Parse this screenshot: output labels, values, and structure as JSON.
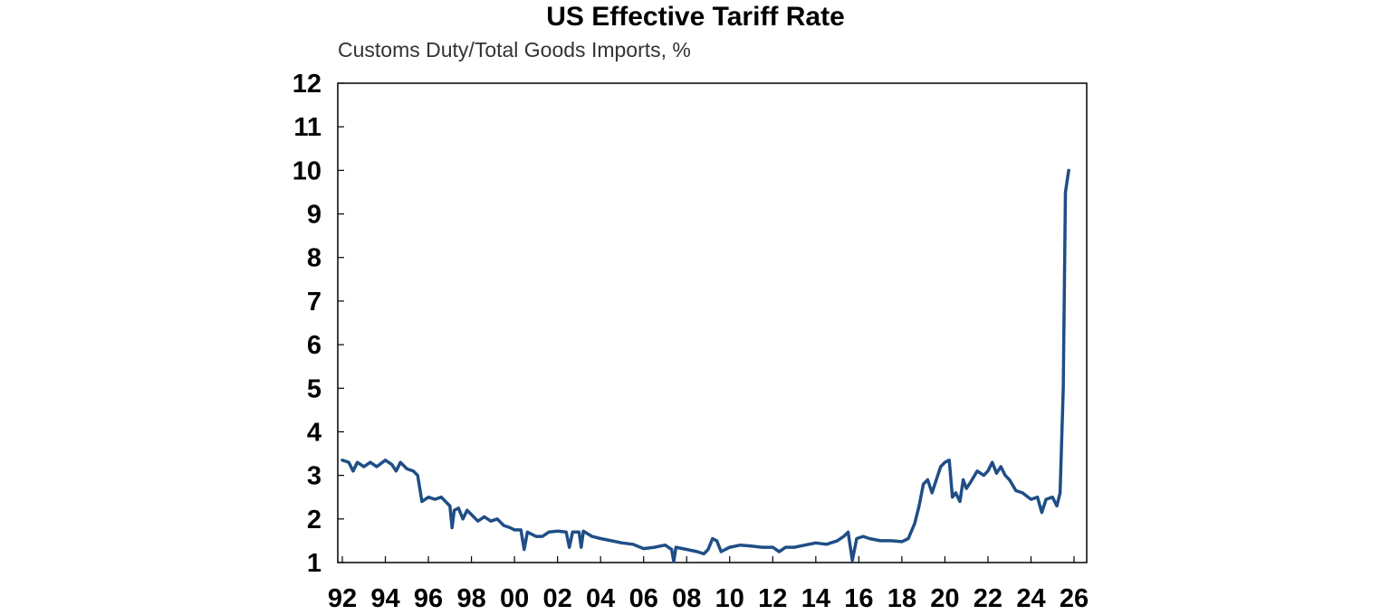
{
  "chart_data": {
    "type": "line",
    "title": "US Effective Tariff Rate",
    "subtitle": "Customs Duty/Total Goods Imports, %",
    "xlabel": "",
    "ylabel": "",
    "xlim": [
      1992,
      2026
    ],
    "ylim": [
      1,
      12
    ],
    "yticks": [
      "1",
      "2",
      "3",
      "4",
      "5",
      "6",
      "7",
      "8",
      "9",
      "10",
      "11",
      "12"
    ],
    "xticks": [
      "92",
      "94",
      "96",
      "98",
      "00",
      "02",
      "04",
      "06",
      "08",
      "10",
      "12",
      "14",
      "16",
      "18",
      "20",
      "22",
      "24",
      "26"
    ],
    "grid": false,
    "legend": "none",
    "series_color": "#1f4e86",
    "series": [
      {
        "values": [
          [
            1992.0,
            3.35
          ],
          [
            1992.3,
            3.3
          ],
          [
            1992.5,
            3.1
          ],
          [
            1992.7,
            3.3
          ],
          [
            1993.0,
            3.2
          ],
          [
            1993.3,
            3.3
          ],
          [
            1993.6,
            3.2
          ],
          [
            1994.0,
            3.35
          ],
          [
            1994.3,
            3.25
          ],
          [
            1994.5,
            3.1
          ],
          [
            1994.7,
            3.3
          ],
          [
            1995.0,
            3.15
          ],
          [
            1995.3,
            3.1
          ],
          [
            1995.5,
            3.0
          ],
          [
            1995.7,
            2.4
          ],
          [
            1996.0,
            2.5
          ],
          [
            1996.3,
            2.45
          ],
          [
            1996.6,
            2.5
          ],
          [
            1996.9,
            2.35
          ],
          [
            1997.0,
            2.3
          ],
          [
            1997.1,
            1.8
          ],
          [
            1997.2,
            2.2
          ],
          [
            1997.4,
            2.25
          ],
          [
            1997.6,
            2.0
          ],
          [
            1997.8,
            2.2
          ],
          [
            1998.0,
            2.1
          ],
          [
            1998.3,
            1.95
          ],
          [
            1998.6,
            2.05
          ],
          [
            1998.9,
            1.95
          ],
          [
            1999.2,
            2.0
          ],
          [
            1999.5,
            1.85
          ],
          [
            1999.8,
            1.8
          ],
          [
            2000.0,
            1.75
          ],
          [
            2000.3,
            1.75
          ],
          [
            2000.45,
            1.3
          ],
          [
            2000.6,
            1.7
          ],
          [
            2001.0,
            1.6
          ],
          [
            2001.3,
            1.6
          ],
          [
            2001.6,
            1.7
          ],
          [
            2002.0,
            1.72
          ],
          [
            2002.4,
            1.7
          ],
          [
            2002.55,
            1.35
          ],
          [
            2002.7,
            1.7
          ],
          [
            2003.0,
            1.7
          ],
          [
            2003.1,
            1.35
          ],
          [
            2003.2,
            1.72
          ],
          [
            2003.6,
            1.6
          ],
          [
            2004.0,
            1.55
          ],
          [
            2004.5,
            1.5
          ],
          [
            2005.0,
            1.45
          ],
          [
            2005.5,
            1.42
          ],
          [
            2006.0,
            1.32
          ],
          [
            2006.5,
            1.35
          ],
          [
            2007.0,
            1.4
          ],
          [
            2007.3,
            1.3
          ],
          [
            2007.4,
            1.02
          ],
          [
            2007.5,
            1.35
          ],
          [
            2008.0,
            1.3
          ],
          [
            2008.5,
            1.25
          ],
          [
            2008.8,
            1.2
          ],
          [
            2009.0,
            1.3
          ],
          [
            2009.2,
            1.55
          ],
          [
            2009.4,
            1.5
          ],
          [
            2009.6,
            1.25
          ],
          [
            2009.8,
            1.3
          ],
          [
            2010.0,
            1.35
          ],
          [
            2010.5,
            1.4
          ],
          [
            2011.0,
            1.38
          ],
          [
            2011.5,
            1.35
          ],
          [
            2012.0,
            1.35
          ],
          [
            2012.3,
            1.25
          ],
          [
            2012.6,
            1.35
          ],
          [
            2013.0,
            1.35
          ],
          [
            2013.5,
            1.4
          ],
          [
            2014.0,
            1.45
          ],
          [
            2014.5,
            1.42
          ],
          [
            2015.0,
            1.5
          ],
          [
            2015.3,
            1.6
          ],
          [
            2015.5,
            1.7
          ],
          [
            2015.7,
            1.05
          ],
          [
            2015.9,
            1.55
          ],
          [
            2016.2,
            1.6
          ],
          [
            2016.5,
            1.55
          ],
          [
            2017.0,
            1.5
          ],
          [
            2017.5,
            1.5
          ],
          [
            2018.0,
            1.48
          ],
          [
            2018.3,
            1.55
          ],
          [
            2018.6,
            1.9
          ],
          [
            2018.8,
            2.3
          ],
          [
            2019.0,
            2.8
          ],
          [
            2019.2,
            2.9
          ],
          [
            2019.4,
            2.6
          ],
          [
            2019.6,
            2.9
          ],
          [
            2019.8,
            3.2
          ],
          [
            2020.0,
            3.3
          ],
          [
            2020.2,
            3.35
          ],
          [
            2020.35,
            2.5
          ],
          [
            2020.5,
            2.6
          ],
          [
            2020.7,
            2.4
          ],
          [
            2020.85,
            2.9
          ],
          [
            2021.0,
            2.7
          ],
          [
            2021.2,
            2.85
          ],
          [
            2021.5,
            3.1
          ],
          [
            2021.8,
            3.0
          ],
          [
            2022.0,
            3.1
          ],
          [
            2022.2,
            3.3
          ],
          [
            2022.4,
            3.05
          ],
          [
            2022.6,
            3.2
          ],
          [
            2022.8,
            3.0
          ],
          [
            2023.0,
            2.9
          ],
          [
            2023.3,
            2.65
          ],
          [
            2023.6,
            2.6
          ],
          [
            2024.0,
            2.45
          ],
          [
            2024.3,
            2.5
          ],
          [
            2024.5,
            2.15
          ],
          [
            2024.7,
            2.45
          ],
          [
            2025.0,
            2.5
          ],
          [
            2025.2,
            2.3
          ],
          [
            2025.35,
            2.6
          ],
          [
            2025.5,
            5.0
          ],
          [
            2025.6,
            9.5
          ],
          [
            2025.75,
            10.0
          ]
        ]
      }
    ]
  }
}
